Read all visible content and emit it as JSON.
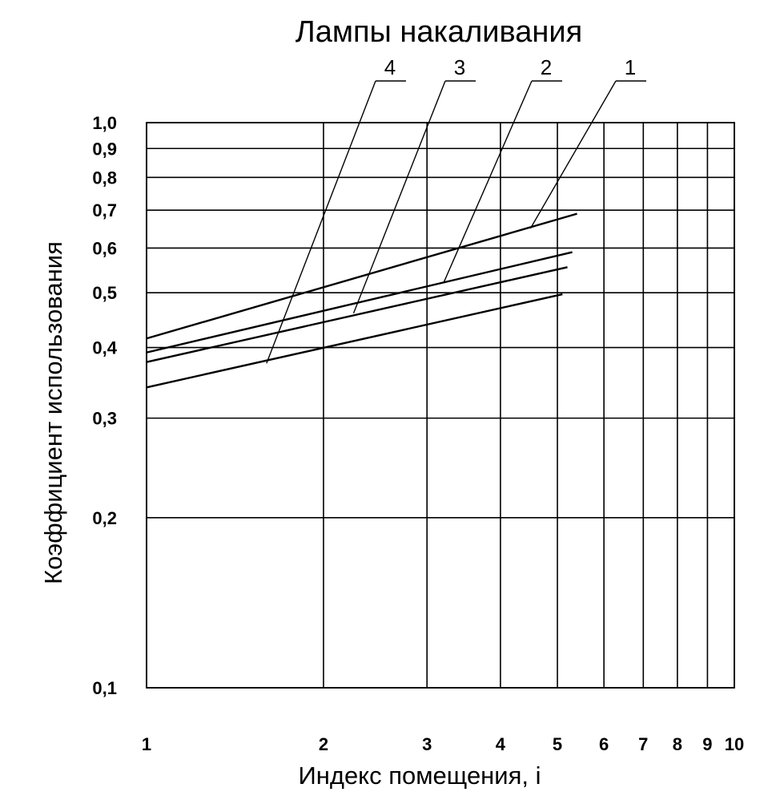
{
  "chart_data": {
    "type": "line",
    "title": "Лампы накаливания",
    "xlabel": "Индекс помещения, i",
    "ylabel": "Коэффициент использования",
    "x_scale": "log",
    "y_scale": "log",
    "xlim": [
      1,
      10
    ],
    "ylim": [
      0.1,
      1.0
    ],
    "grid": true,
    "x_ticks": [
      1,
      2,
      3,
      4,
      5,
      6,
      7,
      8,
      9,
      10
    ],
    "x_tick_labels": [
      "1",
      "2",
      "3",
      "4",
      "5",
      "6",
      "7",
      "8",
      "9",
      "10"
    ],
    "y_ticks": [
      0.1,
      0.2,
      0.3,
      0.4,
      0.5,
      0.6,
      0.7,
      0.8,
      0.9,
      1.0
    ],
    "y_tick_labels": [
      "0,1",
      "0,2",
      "0,3",
      "0,4",
      "0,5",
      "0,6",
      "0,7",
      "0,8",
      "0,9",
      "1,0"
    ],
    "series": [
      {
        "name": "1",
        "x": [
          1,
          5.4
        ],
        "y": [
          0.415,
          0.69
        ],
        "label_at": {
          "x": 4.5,
          "y": 0.65
        }
      },
      {
        "name": "2",
        "x": [
          1,
          5.3
        ],
        "y": [
          0.392,
          0.59
        ],
        "label_at": {
          "x": 3.2,
          "y": 0.52
        }
      },
      {
        "name": "3",
        "x": [
          1,
          5.2
        ],
        "y": [
          0.377,
          0.555
        ],
        "label_at": {
          "x": 2.25,
          "y": 0.46
        }
      },
      {
        "name": "4",
        "x": [
          1,
          5.1
        ],
        "y": [
          0.34,
          0.497
        ],
        "label_at": {
          "x": 1.6,
          "y": 0.375
        }
      }
    ]
  }
}
